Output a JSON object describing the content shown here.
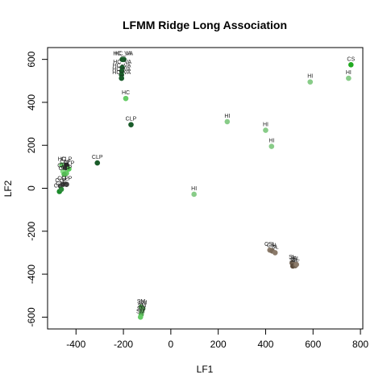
{
  "chart_data": {
    "type": "scatter",
    "title": "LFMM Ridge Long Association",
    "xlabel": "LF1",
    "ylabel": "LF2",
    "xlim": [
      -520,
      810
    ],
    "ylim": [
      -655,
      655
    ],
    "xticks": [
      -400,
      -200,
      0,
      200,
      400,
      600,
      800
    ],
    "yticks": [
      -600,
      -400,
      -200,
      0,
      200,
      400,
      600
    ],
    "grid": false,
    "legend": "none",
    "points": [
      {
        "x": -205,
        "y": 600,
        "label": "HC_VA",
        "color": "#1a5c2a"
      },
      {
        "x": -198,
        "y": 600,
        "label": "HC_VA",
        "color": "#1a5c2a"
      },
      {
        "x": -205,
        "y": 562,
        "label": "HC_VA",
        "color": "#1a5c2a"
      },
      {
        "x": -207,
        "y": 545,
        "label": "HC_VA",
        "color": "#1a5c2a"
      },
      {
        "x": -208,
        "y": 528,
        "label": "HC_VA",
        "color": "#1a5c2a"
      },
      {
        "x": -208,
        "y": 512,
        "label": "HC_VA",
        "color": "#1a5c2a"
      },
      {
        "x": -190,
        "y": 418,
        "label": "HC",
        "color": "#66cc66"
      },
      {
        "x": -168,
        "y": 296,
        "label": "CLP",
        "color": "#1a5c2a"
      },
      {
        "x": -310,
        "y": 118,
        "label": "CLP",
        "color": "#1a5c2a"
      },
      {
        "x": -460,
        "y": 108,
        "label": "HC",
        "color": "#66cc66"
      },
      {
        "x": -440,
        "y": 108,
        "label": "CLP",
        "color": "#2d2d2d"
      },
      {
        "x": -445,
        "y": 95,
        "label": "CLP",
        "color": "#3a3a3a"
      },
      {
        "x": -430,
        "y": 90,
        "label": "CLP",
        "color": "#55cc55"
      },
      {
        "x": -455,
        "y": 78,
        "label": "CLP",
        "color": "#88dd88"
      },
      {
        "x": -440,
        "y": 70,
        "label": "CLP",
        "color": "#66cc66"
      },
      {
        "x": -450,
        "y": 65,
        "label": "CLP",
        "color": "#55bb55"
      },
      {
        "x": -455,
        "y": 18,
        "label": "CLP",
        "color": "#444444"
      },
      {
        "x": -440,
        "y": 18,
        "label": "CLP",
        "color": "#444444"
      },
      {
        "x": -465,
        "y": 10,
        "label": "CLP",
        "color": "#555555"
      },
      {
        "x": -470,
        "y": -15,
        "label": "CLP",
        "color": "#1a8a2a"
      },
      {
        "x": -462,
        "y": -5,
        "label": "CLP",
        "color": "#2d8a3a"
      },
      {
        "x": 98,
        "y": -28,
        "label": "HI",
        "color": "#88cc88"
      },
      {
        "x": 238,
        "y": 310,
        "label": "HI",
        "color": "#88cc88"
      },
      {
        "x": 400,
        "y": 270,
        "label": "HI",
        "color": "#88cc88"
      },
      {
        "x": 425,
        "y": 195,
        "label": "HI",
        "color": "#88cc88"
      },
      {
        "x": 588,
        "y": 495,
        "label": "HI",
        "color": "#88cc88"
      },
      {
        "x": 750,
        "y": 512,
        "label": "HI",
        "color": "#88cc88"
      },
      {
        "x": 760,
        "y": 575,
        "label": "CS",
        "color": "#22aa22"
      },
      {
        "x": 418,
        "y": -288,
        "label": "CSL",
        "color": "#8a7a6a"
      },
      {
        "x": 428,
        "y": -292,
        "label": "CSL",
        "color": "#7a6a5a"
      },
      {
        "x": 440,
        "y": -300,
        "label": "SL",
        "color": "#8a7a6a"
      },
      {
        "x": 512,
        "y": -348,
        "label": "SL",
        "color": "#6a5a4a"
      },
      {
        "x": 520,
        "y": -352,
        "label": "SL",
        "color": "#7a6a5a"
      },
      {
        "x": 515,
        "y": -362,
        "label": "SL",
        "color": "#5a4a3a"
      },
      {
        "x": 525,
        "y": -360,
        "label": "SL",
        "color": "#6a5a4a"
      },
      {
        "x": 530,
        "y": -355,
        "label": "SL",
        "color": "#8a7a6a"
      },
      {
        "x": -125,
        "y": -553,
        "label": "SM",
        "color": "#55aa55"
      },
      {
        "x": -118,
        "y": -560,
        "label": "SM",
        "color": "#55aa55"
      },
      {
        "x": -122,
        "y": -572,
        "label": "SM",
        "color": "#66bb66"
      },
      {
        "x": -125,
        "y": -588,
        "label": "SM",
        "color": "#55aa55"
      },
      {
        "x": -128,
        "y": -600,
        "label": "SM",
        "color": "#66cc66"
      }
    ]
  }
}
